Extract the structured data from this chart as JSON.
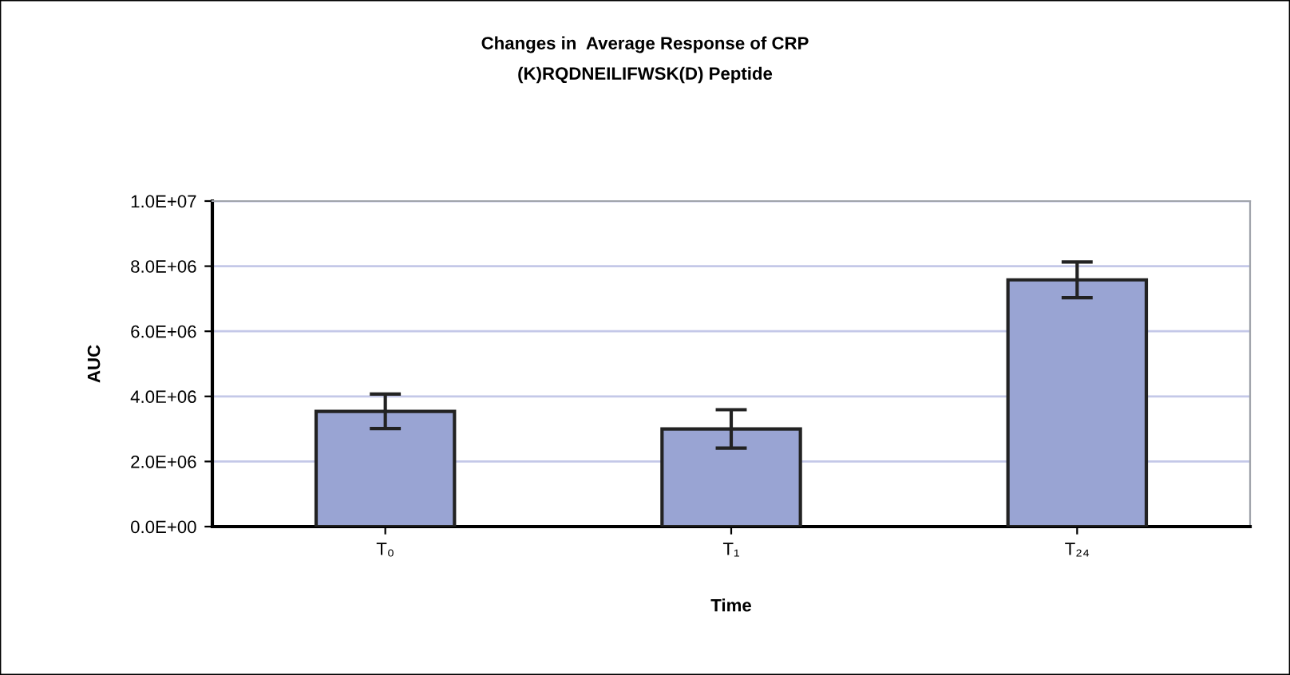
{
  "chart_data": {
    "type": "bar",
    "title": "Changes in  Average Response of CRP",
    "subtitle": "(K)RQDNEILIFWSK(D) Peptide",
    "xlabel": "Time",
    "ylabel": "AUC",
    "categories": [
      "T₀",
      "T₁",
      "T₂₄"
    ],
    "values": [
      3540000,
      3000000,
      7580000
    ],
    "errors": [
      530000,
      590000,
      550000
    ],
    "color": "#99a4d3",
    "ylim": [
      0,
      10000000
    ],
    "yticks": [
      {
        "value": 0,
        "label": "0.0E+00"
      },
      {
        "value": 2000000,
        "label": "2.0E+06"
      },
      {
        "value": 4000000,
        "label": "4.0E+06"
      },
      {
        "value": 6000000,
        "label": "6.0E+06"
      },
      {
        "value": 8000000,
        "label": "8.0E+06"
      },
      {
        "value": 10000000,
        "label": "1.0E+07"
      }
    ],
    "grid": "y"
  }
}
